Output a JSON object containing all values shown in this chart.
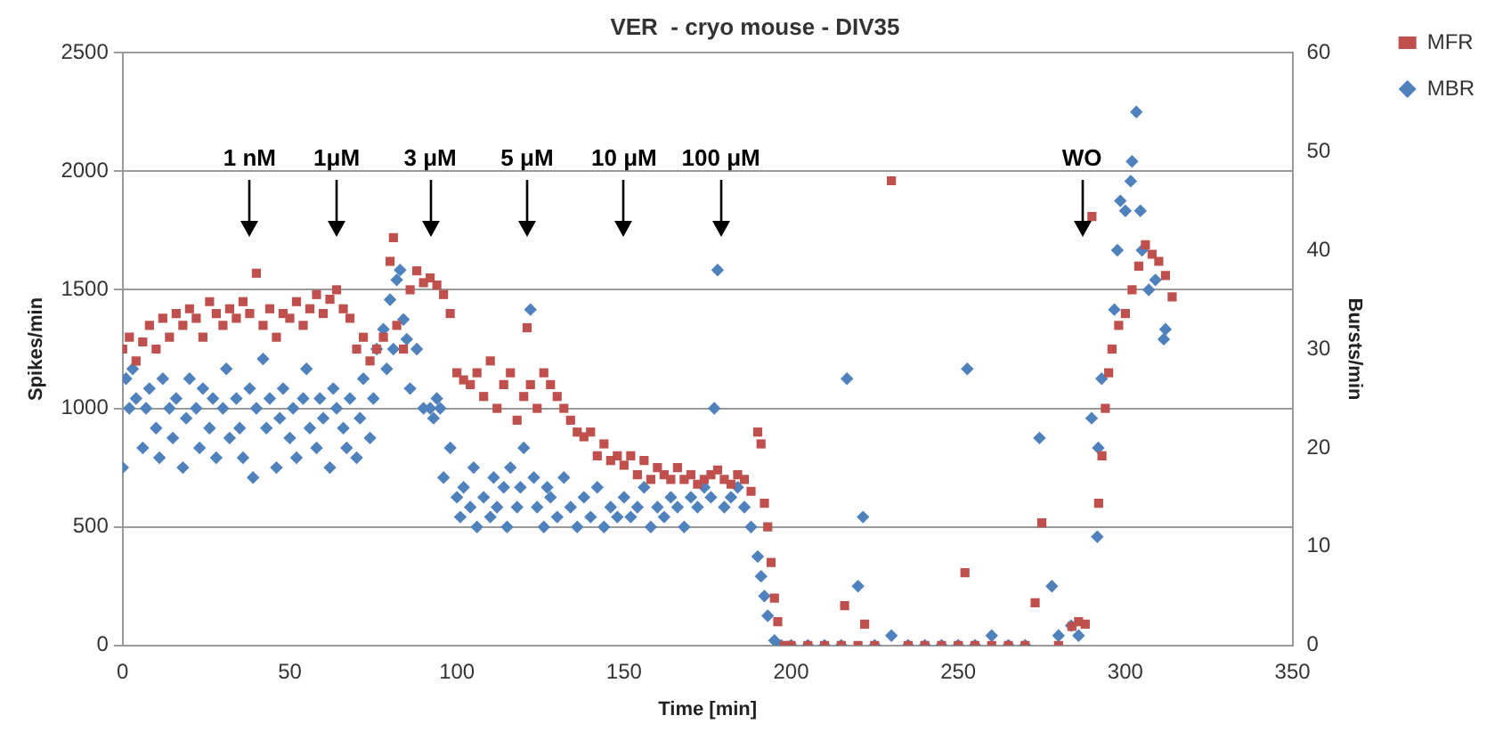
{
  "chart_data": {
    "type": "scatter",
    "title": "VER  - cryo mouse - DIV35",
    "xlabel": "Time [min]",
    "ylabel": "Spikes/min",
    "y2label": "Bursts/min",
    "xlim": [
      0,
      350
    ],
    "xticks": [
      0,
      50,
      100,
      150,
      200,
      250,
      300,
      350
    ],
    "ylim": [
      0,
      2500
    ],
    "yticks": [
      0,
      500,
      1000,
      1500,
      2000,
      2500
    ],
    "y2lim": [
      0,
      60
    ],
    "y2ticks": [
      0,
      10,
      20,
      30,
      40,
      50,
      60
    ],
    "grid": "y",
    "legend": "top right",
    "annotations": [
      {
        "text": "1 nM",
        "x": 38
      },
      {
        "text": "1μM",
        "x": 64
      },
      {
        "text": "3 μM",
        "x": 92
      },
      {
        "text": "5 μM",
        "x": 121
      },
      {
        "text": "10 μM",
        "x": 150
      },
      {
        "text": "100 μM",
        "x": 179
      },
      {
        "text": "WO",
        "x": 287
      }
    ],
    "series": [
      {
        "name": "MFR",
        "color": "#c0504d",
        "marker": "square",
        "x": [
          0,
          2,
          4,
          6,
          8,
          10,
          12,
          14,
          16,
          18,
          20,
          22,
          24,
          26,
          28,
          30,
          32,
          34,
          36,
          38,
          40,
          42,
          44,
          46,
          48,
          50,
          52,
          54,
          56,
          58,
          60,
          62,
          64,
          66,
          68,
          70,
          72,
          74,
          76,
          78,
          80,
          81,
          82,
          84,
          86,
          88,
          90,
          92,
          94,
          96,
          98,
          100,
          102,
          104,
          106,
          108,
          110,
          112,
          114,
          116,
          118,
          120,
          121,
          122,
          124,
          126,
          128,
          130,
          132,
          134,
          136,
          138,
          140,
          142,
          144,
          146,
          148,
          150,
          152,
          154,
          156,
          158,
          160,
          162,
          164,
          166,
          168,
          170,
          172,
          174,
          176,
          178,
          180,
          182,
          184,
          186,
          188,
          190,
          191,
          192,
          193,
          194,
          195,
          196,
          198,
          200,
          205,
          210,
          215,
          216,
          220,
          222,
          225,
          230,
          235,
          240,
          245,
          250,
          252,
          255,
          260,
          265,
          270,
          273,
          275,
          280,
          284,
          286,
          288,
          290,
          292,
          293,
          294,
          295,
          296,
          298,
          300,
          302,
          304,
          306,
          308,
          310,
          312,
          314
        ],
        "values": [
          1250,
          1300,
          1200,
          1280,
          1350,
          1250,
          1380,
          1300,
          1400,
          1350,
          1420,
          1380,
          1300,
          1450,
          1400,
          1350,
          1420,
          1380,
          1450,
          1400,
          1570,
          1350,
          1420,
          1300,
          1400,
          1380,
          1450,
          1350,
          1420,
          1480,
          1400,
          1460,
          1500,
          1420,
          1380,
          1250,
          1300,
          1200,
          1250,
          1300,
          1620,
          1720,
          1350,
          1250,
          1500,
          1580,
          1530,
          1550,
          1520,
          1480,
          1400,
          1150,
          1120,
          1100,
          1150,
          1050,
          1200,
          1000,
          1100,
          1150,
          950,
          1050,
          1340,
          1100,
          1000,
          1150,
          1100,
          1050,
          1000,
          950,
          900,
          880,
          900,
          800,
          850,
          780,
          800,
          760,
          800,
          720,
          780,
          700,
          750,
          720,
          700,
          750,
          700,
          720,
          680,
          700,
          720,
          740,
          700,
          680,
          720,
          700,
          650,
          900,
          850,
          600,
          500,
          350,
          200,
          100,
          0,
          0,
          0,
          0,
          0,
          168,
          0,
          90,
          0,
          1960,
          0,
          0,
          0,
          0,
          307,
          0,
          0,
          0,
          0,
          180,
          517,
          0,
          80,
          100,
          90,
          1809,
          600,
          800,
          1000,
          1150,
          1250,
          1350,
          1400,
          1500,
          1600,
          1690,
          1650,
          1620,
          1560,
          1470
        ]
      },
      {
        "name": "MBR",
        "color": "#4f81bd",
        "marker": "diamond",
        "axis": "y2",
        "x": [
          0,
          1,
          2,
          3,
          4,
          6,
          7,
          8,
          10,
          11,
          12,
          14,
          15,
          16,
          18,
          19,
          20,
          22,
          23,
          24,
          26,
          27,
          28,
          30,
          31,
          32,
          34,
          35,
          36,
          38,
          39,
          40,
          42,
          43,
          44,
          46,
          47,
          48,
          50,
          51,
          52,
          54,
          55,
          56,
          58,
          59,
          60,
          62,
          63,
          64,
          66,
          67,
          68,
          70,
          71,
          72,
          74,
          75,
          76,
          78,
          79,
          80,
          81,
          82,
          83,
          84,
          85,
          86,
          88,
          90,
          92,
          93,
          94,
          95,
          96,
          98,
          100,
          101,
          102,
          104,
          105,
          106,
          108,
          110,
          111,
          112,
          114,
          115,
          116,
          118,
          119,
          120,
          122,
          123,
          124,
          126,
          127,
          128,
          130,
          132,
          134,
          136,
          138,
          140,
          142,
          144,
          146,
          148,
          150,
          152,
          154,
          156,
          158,
          160,
          162,
          164,
          166,
          168,
          170,
          172,
          174,
          176,
          177,
          178,
          180,
          182,
          184,
          186,
          188,
          190,
          191,
          192,
          193,
          195,
          197,
          200,
          205,
          210,
          215,
          216.7,
          220,
          221.5,
          225,
          230,
          235,
          240,
          245,
          250,
          252.7,
          255,
          260,
          265,
          270,
          274.3,
          278,
          280,
          283.8,
          286,
          289.9,
          291.6,
          291.9,
          292.9,
          296.7,
          297.6,
          298.5,
          300,
          301.6,
          302,
          303.3,
          304.5,
          305,
          307,
          309,
          311.5,
          312
        ],
        "values": [
          18,
          27,
          24,
          28,
          25,
          20,
          24,
          26,
          22,
          19,
          27,
          24,
          21,
          25,
          18,
          23,
          27,
          24,
          20,
          26,
          22,
          25,
          19,
          24,
          28,
          21,
          25,
          22,
          19,
          26,
          17,
          24,
          29,
          22,
          25,
          18,
          23,
          26,
          21,
          24,
          19,
          25,
          28,
          22,
          20,
          25,
          23,
          18,
          26,
          24,
          22,
          20,
          25,
          19,
          23,
          27,
          21,
          25,
          30,
          32,
          28,
          35,
          30,
          37,
          38,
          33,
          31,
          26,
          30,
          24,
          24,
          23,
          25,
          24,
          17,
          20,
          15,
          13,
          16,
          14,
          18,
          12,
          15,
          13,
          17,
          14,
          16,
          12,
          18,
          14,
          16,
          20,
          34,
          17,
          14,
          12,
          16,
          15,
          13,
          17,
          14,
          12,
          15,
          13,
          16,
          12,
          14,
          13,
          15,
          13,
          14,
          16,
          12,
          14,
          13,
          15,
          14,
          12,
          15,
          14,
          16,
          15,
          24,
          38,
          14,
          15,
          16,
          14,
          12,
          9,
          7,
          5,
          3,
          0.5,
          0,
          0,
          0,
          0,
          0,
          27,
          6,
          13,
          0,
          1,
          0,
          0,
          0,
          0,
          28,
          0,
          1,
          0,
          0,
          21,
          6,
          1,
          2,
          1,
          23,
          11,
          20,
          27,
          34,
          40,
          45,
          44,
          47,
          49,
          54,
          44,
          40,
          36,
          37,
          31,
          32
        ]
      }
    ]
  }
}
